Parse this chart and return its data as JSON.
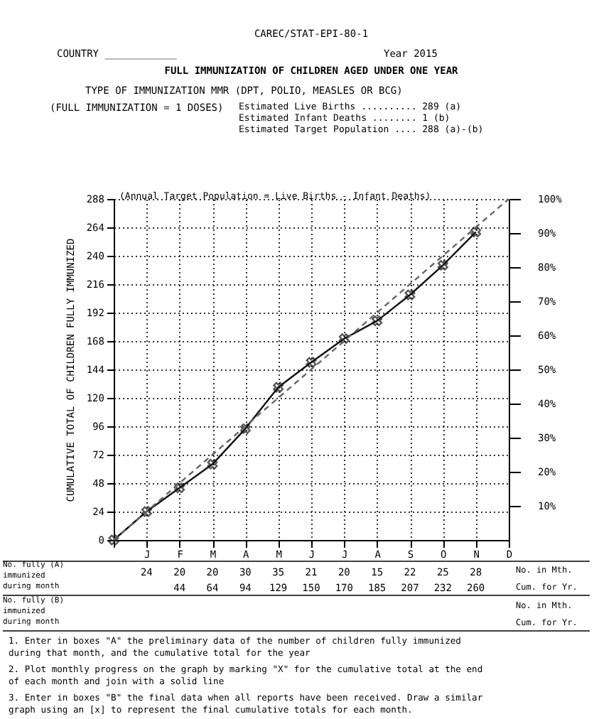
{
  "chart_data": {
    "type": "line",
    "title": "FULL IMMUNIZATION OF CHILDREN AGED UNDER ONE YEAR",
    "ylabel": "CUMULATIVE TOTAL OF CHILDREN FULLY IMMUNIZED",
    "categories": [
      null,
      "J",
      "F",
      "M",
      "A",
      "M",
      "J",
      "J",
      "A",
      "S",
      "O",
      "N",
      "D"
    ],
    "series": [
      {
        "color": "#111111",
        "marker": "cross",
        "line_style": "solid",
        "values": [
          0,
          24,
          44,
          64,
          94,
          129,
          150,
          170,
          185,
          207,
          232,
          260,
          null
        ],
        "value_labels": [
          null,
          null,
          "44",
          "64",
          "94",
          "129",
          "150",
          "170",
          "185",
          "207",
          "232",
          "260",
          null
        ]
      },
      {
        "color": "#666666",
        "marker": "none",
        "line_style": "dashed",
        "values": [
          0,
          24,
          48,
          72,
          96,
          120,
          144,
          168,
          192,
          216,
          240,
          264,
          288
        ]
      }
    ],
    "ylim": [
      0,
      288
    ],
    "yticks": [
      0,
      24,
      48,
      72,
      96,
      120,
      144,
      168,
      192,
      216,
      240,
      264,
      288
    ],
    "y2lim": [
      0,
      100
    ],
    "y2ticks": [
      {
        "value": 10,
        "label": "10%"
      },
      {
        "value": 20,
        "label": "20%"
      },
      {
        "value": 30,
        "label": "30%"
      },
      {
        "value": 40,
        "label": "40%"
      },
      {
        "value": 50,
        "label": "50%"
      },
      {
        "value": 60,
        "label": "60%"
      },
      {
        "value": 70,
        "label": "70%"
      },
      {
        "value": 80,
        "label": "80%"
      },
      {
        "value": 90,
        "label": "90%"
      },
      {
        "value": 100,
        "label": "100%"
      }
    ],
    "grid": true,
    "annotations": [
      "CAREC/STAT-EPI-80-1",
      "COUNTRY ____________",
      "Year 2015",
      "TYPE OF IMMUNIZATION MMR (DPT, POLIO, MEASLES OR BCG)",
      "(FULL IMMUNIZATION = 1 DOSES)",
      "Estimated Live Births .......... 289 (a)",
      "Estimated Infant Deaths ........ 1 (b)",
      "Estimated Target Population .... 288 (a)-(b)",
      "(Annual Target Population = Live Births - Infant Deaths)",
      "No. fully (A) immunized during month",
      "No. fully (B) immunized during month",
      "No. in Mth.",
      "Cum. for Yr.",
      "No. in Mth.",
      "Cum. for Yr.",
      "1. Enter in boxes \"A\" the preliminary data of the number of children fully immunized during that month, and the cumulative total for the year",
      "2. Plot monthly progress on the graph by marking \"X\" for the cumulative total at the end of each month and join with a solid line",
      "3. Enter in boxes \"B\" the final data when all reports have been received. Draw a similar graph using an [x] to represent the final cumulative totals for each month.",
      "24",
      "20",
      "20",
      "30",
      "35",
      "21",
      "20",
      "15",
      "22",
      "25",
      "28"
    ]
  }
}
